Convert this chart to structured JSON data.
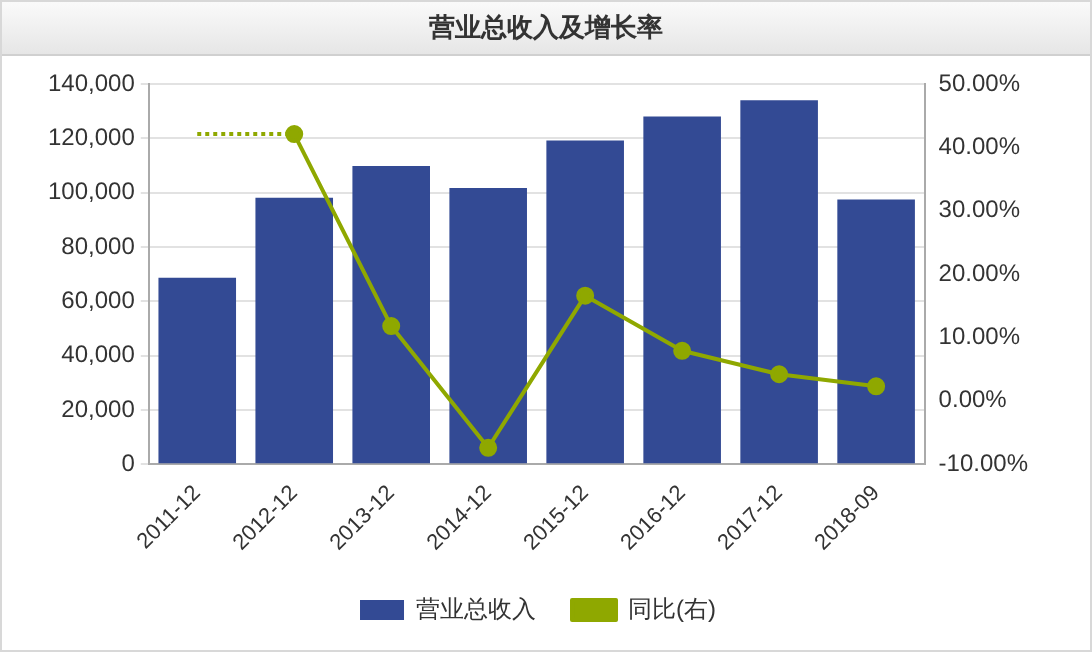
{
  "chart_data": {
    "type": "bar",
    "title": "营业总收入及增长率",
    "categories": [
      "2011-12",
      "2012-12",
      "2013-12",
      "2014-12",
      "2015-12",
      "2016-12",
      "2017-12",
      "2018-09"
    ],
    "series": [
      {
        "name": "营业总收入",
        "color": "#334a94",
        "values": [
          68700,
          98100,
          109800,
          101700,
          119200,
          128000,
          134000,
          97500
        ]
      },
      {
        "name": "同比(右)",
        "type": "line",
        "axis": "y2",
        "color": "#8fa800",
        "marker": "circle",
        "line_style": "solid",
        "values": [
          null,
          42.1,
          11.8,
          -7.4,
          16.6,
          7.9,
          4.2,
          2.3
        ]
      },
      {
        "type": "line",
        "axis": "y2",
        "color": "#8fa800",
        "marker": "none",
        "line_style": "dotted",
        "values": [
          42.1,
          42.1,
          null,
          null,
          null,
          null,
          null,
          null
        ]
      }
    ],
    "ylim": [
      0,
      140000
    ],
    "yticks": [
      {
        "value": 0,
        "label": "0"
      },
      {
        "value": 20000,
        "label": "20,000"
      },
      {
        "value": 40000,
        "label": "40,000"
      },
      {
        "value": 60000,
        "label": "60,000"
      },
      {
        "value": 80000,
        "label": "80,000"
      },
      {
        "value": 100000,
        "label": "100,000"
      },
      {
        "value": 120000,
        "label": "120,000"
      },
      {
        "value": 140000,
        "label": "140,000"
      }
    ],
    "y2lim": [
      -10,
      50
    ],
    "y2ticks": [
      {
        "value": -10,
        "label": "-10.00%"
      },
      {
        "value": 0,
        "label": "0.00%"
      },
      {
        "value": 10,
        "label": "10.00%"
      },
      {
        "value": 20,
        "label": "20.00%"
      },
      {
        "value": 30,
        "label": "30.00%"
      },
      {
        "value": 40,
        "label": "40.00%"
      },
      {
        "value": 50,
        "label": "50.00%"
      }
    ],
    "grid": "y",
    "legend": "bottom"
  }
}
